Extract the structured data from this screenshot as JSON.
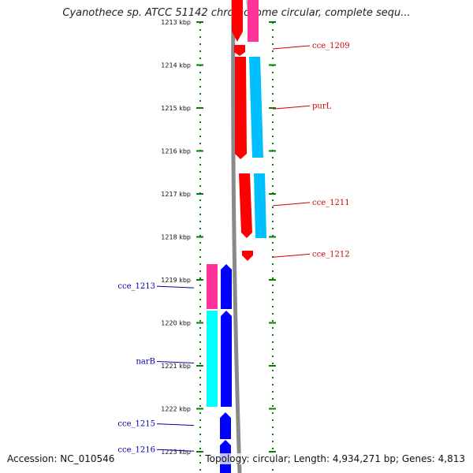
{
  "title": "Cyanothece sp. ATCC 51142 chromosome circular, complete sequ...",
  "footer": {
    "accession": "Accession: NC_010546",
    "stats": "Topology: circular; Length: 4,934,271 bp; Genes: 4,813"
  },
  "colors": {
    "forward_label": "#cc0000",
    "reverse_label": "#0000aa",
    "forward_cds": "#ff0000",
    "forward_gene": "#ff3399",
    "forward_gene_alt": "#00bfff",
    "reverse_cds": "#0000ff",
    "reverse_gene": "#ff3399",
    "reverse_gene_alt": "#00ffff",
    "backbone": "#808080",
    "ticks": "#008000"
  },
  "ruler": [
    {
      "label": "1213 kbp",
      "kbp": 1213
    },
    {
      "label": "1214 kbp",
      "kbp": 1214
    },
    {
      "label": "1215 kbp",
      "kbp": 1215
    },
    {
      "label": "1216 kbp",
      "kbp": 1216
    },
    {
      "label": "1217 kbp",
      "kbp": 1217
    },
    {
      "label": "1218 kbp",
      "kbp": 1218
    },
    {
      "label": "1219 kbp",
      "kbp": 1219
    },
    {
      "label": "1220 kbp",
      "kbp": 1220
    },
    {
      "label": "1221 kbp",
      "kbp": 1221
    },
    {
      "label": "1222 kbp",
      "kbp": 1222
    },
    {
      "label": "1223 kbp",
      "kbp": 1223
    }
  ],
  "forward_labels": [
    {
      "name": "cce_1209",
      "kbp": 1213.55
    },
    {
      "name": "purL",
      "kbp": 1214.95
    },
    {
      "name": "cce_1211",
      "kbp": 1217.2
    },
    {
      "name": "cce_1212",
      "kbp": 1218.4
    }
  ],
  "reverse_labels": [
    {
      "name": "cce_1213",
      "kbp": 1219.15
    },
    {
      "name": "narB",
      "kbp": 1220.9
    },
    {
      "name": "cce_1215",
      "kbp": 1222.35
    },
    {
      "name": "cce_1216",
      "kbp": 1222.95
    }
  ]
}
